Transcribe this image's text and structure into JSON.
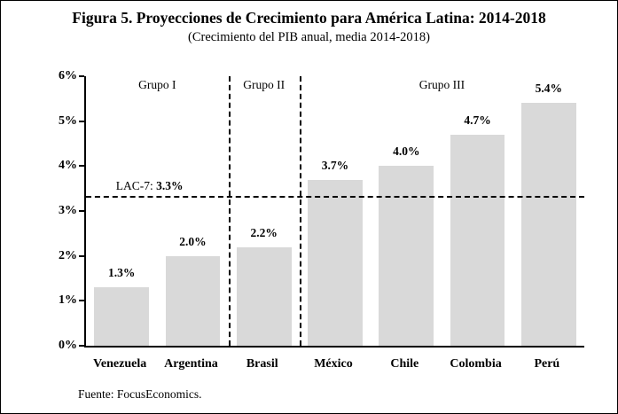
{
  "figure": {
    "title": "Figura 5. Proyecciones de Crecimiento para América Latina: 2014-2018",
    "subtitle": "(Crecimiento del PIB anual, media 2014-2018)",
    "source": "Fuente: FocusEconomics."
  },
  "chart_data": {
    "type": "bar",
    "title": "Figura 5. Proyecciones de Crecimiento para América Latina: 2014-2018",
    "subtitle": "(Crecimiento del PIB anual, media 2014-2018)",
    "categories": [
      "Venezuela",
      "Argentina",
      "Brasil",
      "México",
      "Chile",
      "Colombia",
      "Perú"
    ],
    "values": [
      1.3,
      2.0,
      2.2,
      3.7,
      4.0,
      4.7,
      5.4
    ],
    "value_labels": [
      "1.3%",
      "2.0%",
      "2.2%",
      "3.7%",
      "4.0%",
      "4.7%",
      "5.4%"
    ],
    "xlabel": "",
    "ylabel": "",
    "ylim": [
      0,
      6
    ],
    "ytick_labels": [
      "0%",
      "1%",
      "2%",
      "3%",
      "4%",
      "5%",
      "6%"
    ],
    "grid": false,
    "legend": false,
    "bar_color": "#d9d9d9",
    "groups": [
      {
        "label": "Grupo I",
        "from": 0,
        "to": 1
      },
      {
        "label": "Grupo II",
        "from": 2,
        "to": 2
      },
      {
        "label": "Grupo III",
        "from": 3,
        "to": 6
      }
    ],
    "group_separators_after": [
      1,
      2
    ],
    "reference_line": {
      "value": 3.3,
      "label_prefix": "LAC-7: ",
      "label_value": "3.3%"
    }
  }
}
